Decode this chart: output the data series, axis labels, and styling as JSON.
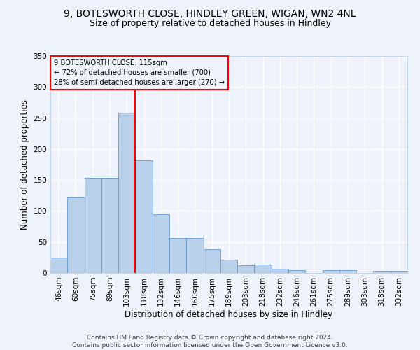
{
  "title": "9, BOTESWORTH CLOSE, HINDLEY GREEN, WIGAN, WN2 4NL",
  "subtitle": "Size of property relative to detached houses in Hindley",
  "xlabel": "Distribution of detached houses by size in Hindley",
  "ylabel": "Number of detached properties",
  "categories": [
    "46sqm",
    "60sqm",
    "75sqm",
    "89sqm",
    "103sqm",
    "118sqm",
    "132sqm",
    "146sqm",
    "160sqm",
    "175sqm",
    "189sqm",
    "203sqm",
    "218sqm",
    "232sqm",
    "246sqm",
    "261sqm",
    "275sqm",
    "289sqm",
    "303sqm",
    "318sqm",
    "332sqm"
  ],
  "values": [
    25,
    122,
    153,
    153,
    258,
    182,
    95,
    56,
    56,
    38,
    22,
    12,
    13,
    7,
    5,
    0,
    5,
    5,
    0,
    3,
    3
  ],
  "bar_color": "#b8d0ea",
  "bar_edgecolor": "#6699cc",
  "ylim": [
    0,
    350
  ],
  "yticks": [
    0,
    50,
    100,
    150,
    200,
    250,
    300,
    350
  ],
  "redline_x": 4.5,
  "annotation_text_line1": "9 BOTESWORTH CLOSE: 115sqm",
  "annotation_text_line2": "← 72% of detached houses are smaller (700)",
  "annotation_text_line3": "28% of semi-detached houses are larger (270) →",
  "footer_line1": "Contains HM Land Registry data © Crown copyright and database right 2024.",
  "footer_line2": "Contains public sector information licensed under the Open Government Licence v3.0.",
  "background_color": "#eef2fb",
  "grid_color": "#ffffff",
  "title_fontsize": 10,
  "subtitle_fontsize": 9,
  "axis_label_fontsize": 8.5,
  "tick_fontsize": 7.5,
  "footer_fontsize": 6.5
}
